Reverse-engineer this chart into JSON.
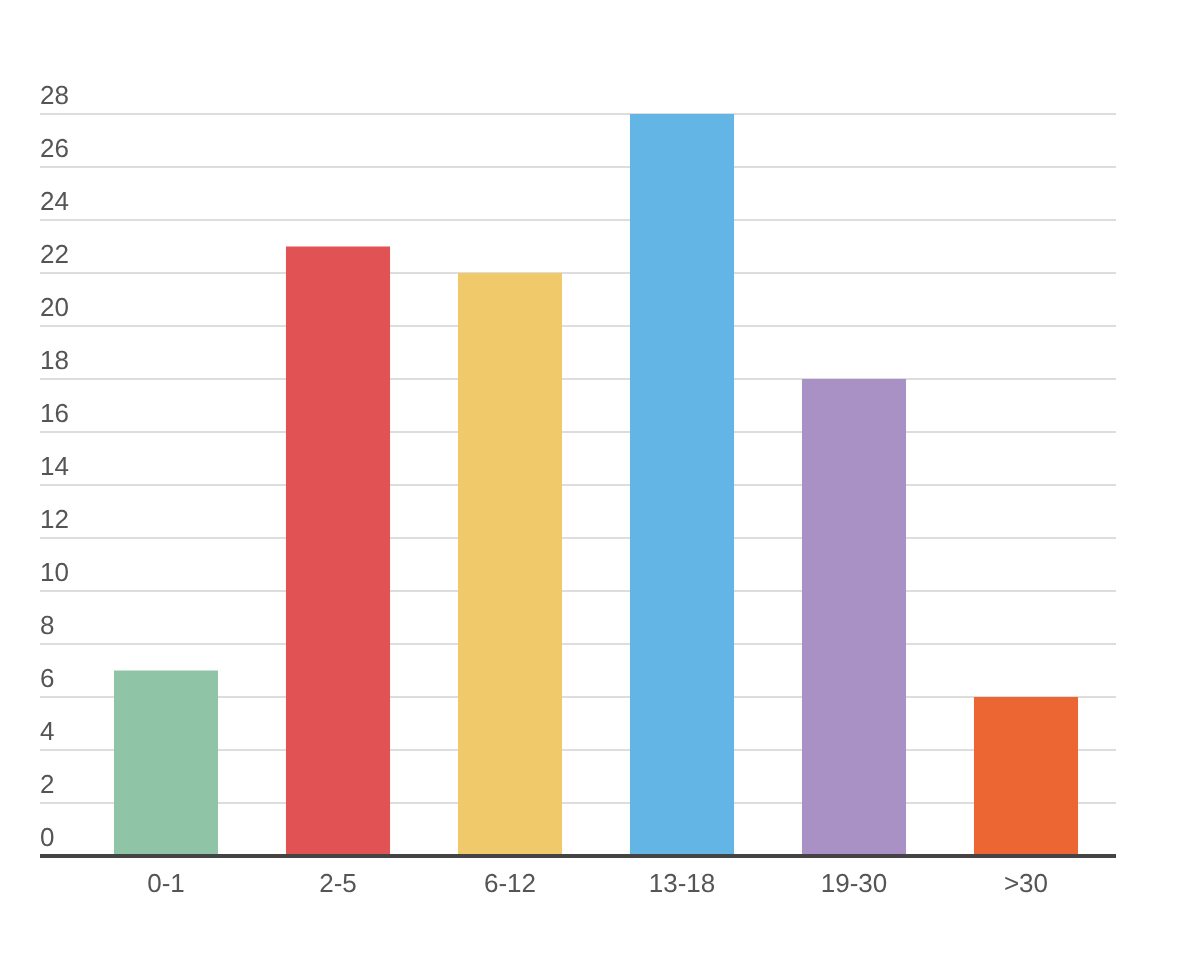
{
  "chart_data": {
    "type": "bar",
    "categories": [
      "0-1",
      "2-5",
      "6-12",
      "13-18",
      "19-30",
      ">30"
    ],
    "values": [
      7,
      23,
      22,
      28,
      18,
      6
    ],
    "colors": [
      "#8fc4a6",
      "#e05254",
      "#f0ca6a",
      "#62b5e4",
      "#a991c5",
      "#ec6634"
    ],
    "ylim": [
      0,
      28
    ],
    "yticks": [
      0,
      2,
      4,
      6,
      8,
      10,
      12,
      14,
      16,
      18,
      20,
      22,
      24,
      26,
      28
    ],
    "grid": "y"
  }
}
